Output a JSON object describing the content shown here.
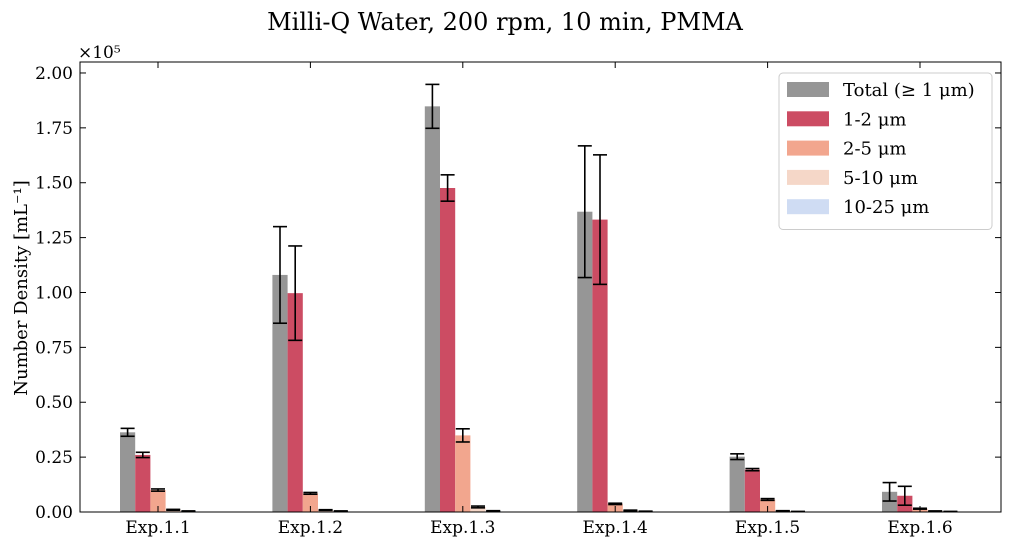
{
  "chart_data": {
    "type": "bar",
    "title": "Milli-Q Water, 200 rpm, 10 min, PMMA",
    "xlabel": "",
    "ylabel": "Number Density [mL⁻¹]",
    "y_scale_label": "×10⁵",
    "y_scale_factor": 100000,
    "ylim": [
      0,
      205000
    ],
    "yticks": [
      0,
      25000,
      50000,
      75000,
      100000,
      125000,
      150000,
      175000,
      200000
    ],
    "ytick_labels": [
      "0.00",
      "0.25",
      "0.50",
      "0.75",
      "1.00",
      "1.25",
      "1.50",
      "1.75",
      "2.00"
    ],
    "categories": [
      "Exp.1.1",
      "Exp.1.2",
      "Exp.1.3",
      "Exp.1.4",
      "Exp.1.5",
      "Exp.1.6"
    ],
    "legend_position": "top-right",
    "grid": false,
    "series": [
      {
        "name": "Total (≥ 1 μm)",
        "color": "#969696",
        "values": [
          36300,
          108000,
          184800,
          136800,
          25200,
          9200
        ],
        "errors": [
          1800,
          22000,
          10000,
          30000,
          1300,
          4200
        ]
      },
      {
        "name": "1-2 μm",
        "color": "#cc4c63",
        "values": [
          26000,
          99700,
          147600,
          133200,
          19300,
          7400
        ],
        "errors": [
          1200,
          21500,
          6000,
          29500,
          500,
          4300
        ]
      },
      {
        "name": "2-5 μm",
        "color": "#f2a68e",
        "values": [
          10000,
          8500,
          34900,
          3700,
          5700,
          1500
        ],
        "errors": [
          500,
          400,
          3000,
          300,
          400,
          200
        ]
      },
      {
        "name": "5-10 μm",
        "color": "#f5d7c8",
        "values": [
          1000,
          900,
          2300,
          700,
          500,
          400
        ],
        "errors": [
          200,
          150,
          400,
          150,
          100,
          100
        ]
      },
      {
        "name": "10-25 μm",
        "color": "#cfdcf3",
        "values": [
          400,
          400,
          500,
          300,
          200,
          200
        ],
        "errors": [
          100,
          100,
          100,
          80,
          60,
          60
        ]
      }
    ]
  }
}
